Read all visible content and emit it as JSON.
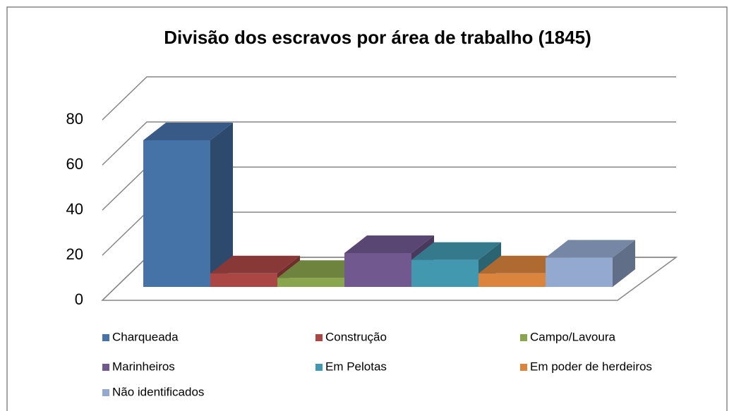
{
  "chart_data": {
    "type": "bar",
    "title": "Divisão dos escravos por área de trabalho (1845)",
    "categories": [
      "Charqueada",
      "Construção",
      "Campo/Lavoura",
      "Marinheiros",
      "Em Pelotas",
      "Em poder de herdeiros",
      "Não identificados"
    ],
    "values": [
      65,
      6,
      4,
      15,
      12,
      6,
      13
    ],
    "colors": [
      "#4572a7",
      "#aa4643",
      "#89a54e",
      "#71588f",
      "#4198af",
      "#db843d",
      "#93a9cf"
    ],
    "ylim": [
      0,
      80
    ],
    "yticks": [
      0,
      20,
      40,
      60,
      80
    ],
    "grid": true,
    "legend": "bottom"
  }
}
